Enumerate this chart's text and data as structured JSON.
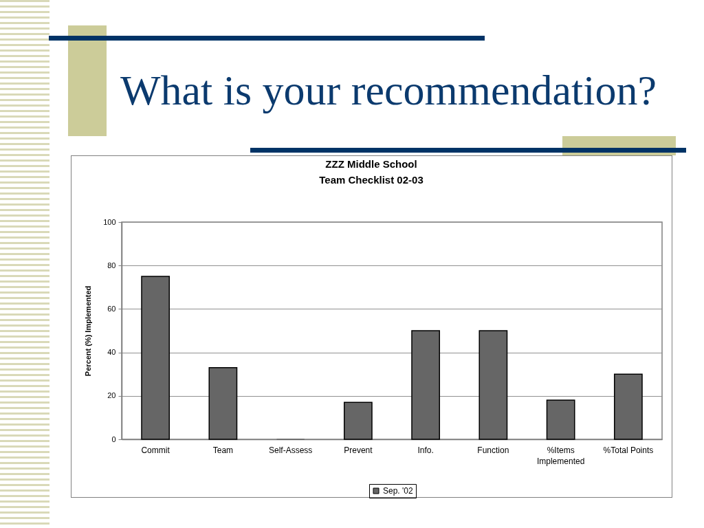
{
  "chart_data": {
    "type": "bar",
    "title": "What is your recommendation?",
    "subtitle": "ZZZ Middle School\nTeam Checklist 02-03",
    "ylabel": "Percent (%) Implemented",
    "categories": [
      "Commit",
      "Team",
      "Self-Assess",
      "Prevent",
      "Info.",
      "Function",
      "%Items Implemented",
      "%Total Points"
    ],
    "series": [
      {
        "name": "Sep. '02",
        "color": "#666666",
        "values": [
          75,
          33,
          0,
          17,
          50,
          50,
          18,
          30
        ]
      }
    ],
    "ylim": [
      0,
      100
    ],
    "yticks": [
      0,
      20,
      40,
      60,
      80,
      100
    ],
    "grid": "y",
    "legend": "bottom"
  }
}
